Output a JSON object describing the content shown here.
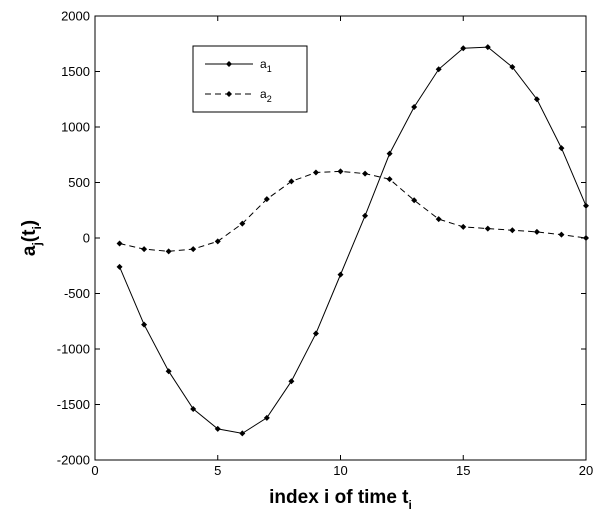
{
  "chart_data": {
    "type": "line",
    "xlabel": "index i of time t",
    "xlabel_subscript": "i",
    "ylabel": "a(t)",
    "ylabel_parts": {
      "base": "a",
      "base_sub": "j",
      "paren_open": "(t",
      "paren_sub": "i",
      "paren_close": ")"
    },
    "xlim": [
      0,
      20
    ],
    "ylim": [
      -2000,
      2000
    ],
    "xticks": [
      0,
      5,
      10,
      15,
      20
    ],
    "yticks": [
      -2000,
      -1500,
      -1000,
      -500,
      0,
      500,
      1000,
      1500,
      2000
    ],
    "grid": false,
    "legend_position": "top-left",
    "x": [
      1,
      2,
      3,
      4,
      5,
      6,
      7,
      8,
      9,
      10,
      11,
      12,
      13,
      14,
      15,
      16,
      17,
      18,
      19,
      20
    ],
    "series": [
      {
        "name": "a1",
        "label_base": "a",
        "label_sub": "1",
        "line_style": "solid",
        "marker": "diamond",
        "color": "#000000",
        "values": [
          -260,
          -780,
          -1200,
          -1540,
          -1720,
          -1760,
          -1620,
          -1290,
          -860,
          -330,
          200,
          760,
          1180,
          1520,
          1710,
          1720,
          1540,
          1250,
          810,
          290
        ]
      },
      {
        "name": "a2",
        "label_base": "a",
        "label_sub": "2",
        "line_style": "dashed",
        "marker": "diamond",
        "color": "#000000",
        "values": [
          -50,
          -100,
          -120,
          -100,
          -30,
          130,
          350,
          510,
          590,
          600,
          580,
          530,
          340,
          170,
          100,
          85,
          70,
          55,
          30,
          0
        ]
      }
    ]
  }
}
